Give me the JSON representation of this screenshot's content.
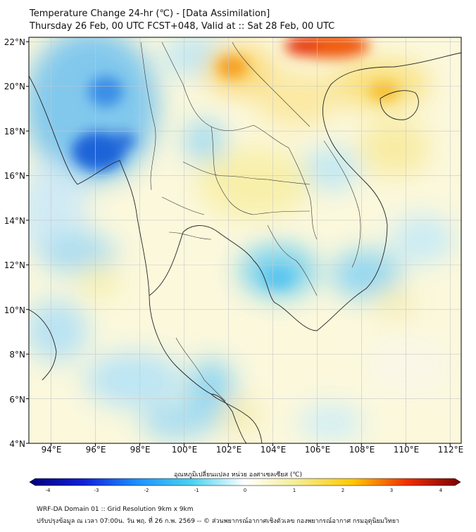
{
  "title": {
    "line1": "Temperature Change 24-hr (℃) - [Data Assimilation]",
    "line2": "Thursday 26 Feb, 00 UTC FCST+048, Valid at :: Sat 28 Feb, 00 UTC"
  },
  "map": {
    "lat_labels": [
      "22°N",
      "20°N",
      "18°N",
      "16°N",
      "14°N",
      "12°N",
      "10°N",
      "8°N",
      "6°N",
      "4°N"
    ],
    "lon_labels": [
      "94°E",
      "96°E",
      "98°E",
      "100°E",
      "102°E",
      "104°E",
      "106°E",
      "108°E",
      "110°E",
      "112°E"
    ],
    "lat_range": [
      4,
      22.2
    ],
    "lon_range": [
      93,
      112.5
    ]
  },
  "colorbar": {
    "label": "อุณหภูมิเปลี่ยนแปลง หน่วย องศาเซลเซียส (℃)",
    "ticks": [
      "-4",
      "-3",
      "-2",
      "-1",
      "0",
      "1",
      "2",
      "3",
      "4"
    ],
    "min": -4,
    "max": 4
  },
  "footer": {
    "line1": "WRF-DA Domain 01 :: Grid Resolution 9km x 9km",
    "line2": "ปรับปรุงข้อมูล ณ เวลา 07:00น. วัน พฤ. ที่ 26 ก.พ. 2569 -- © ส่วนพยากรณ์อากาศเชิงตัวเลข กองพยากรณ์อากาศ กรมอุตุนิยมวิทยา"
  }
}
